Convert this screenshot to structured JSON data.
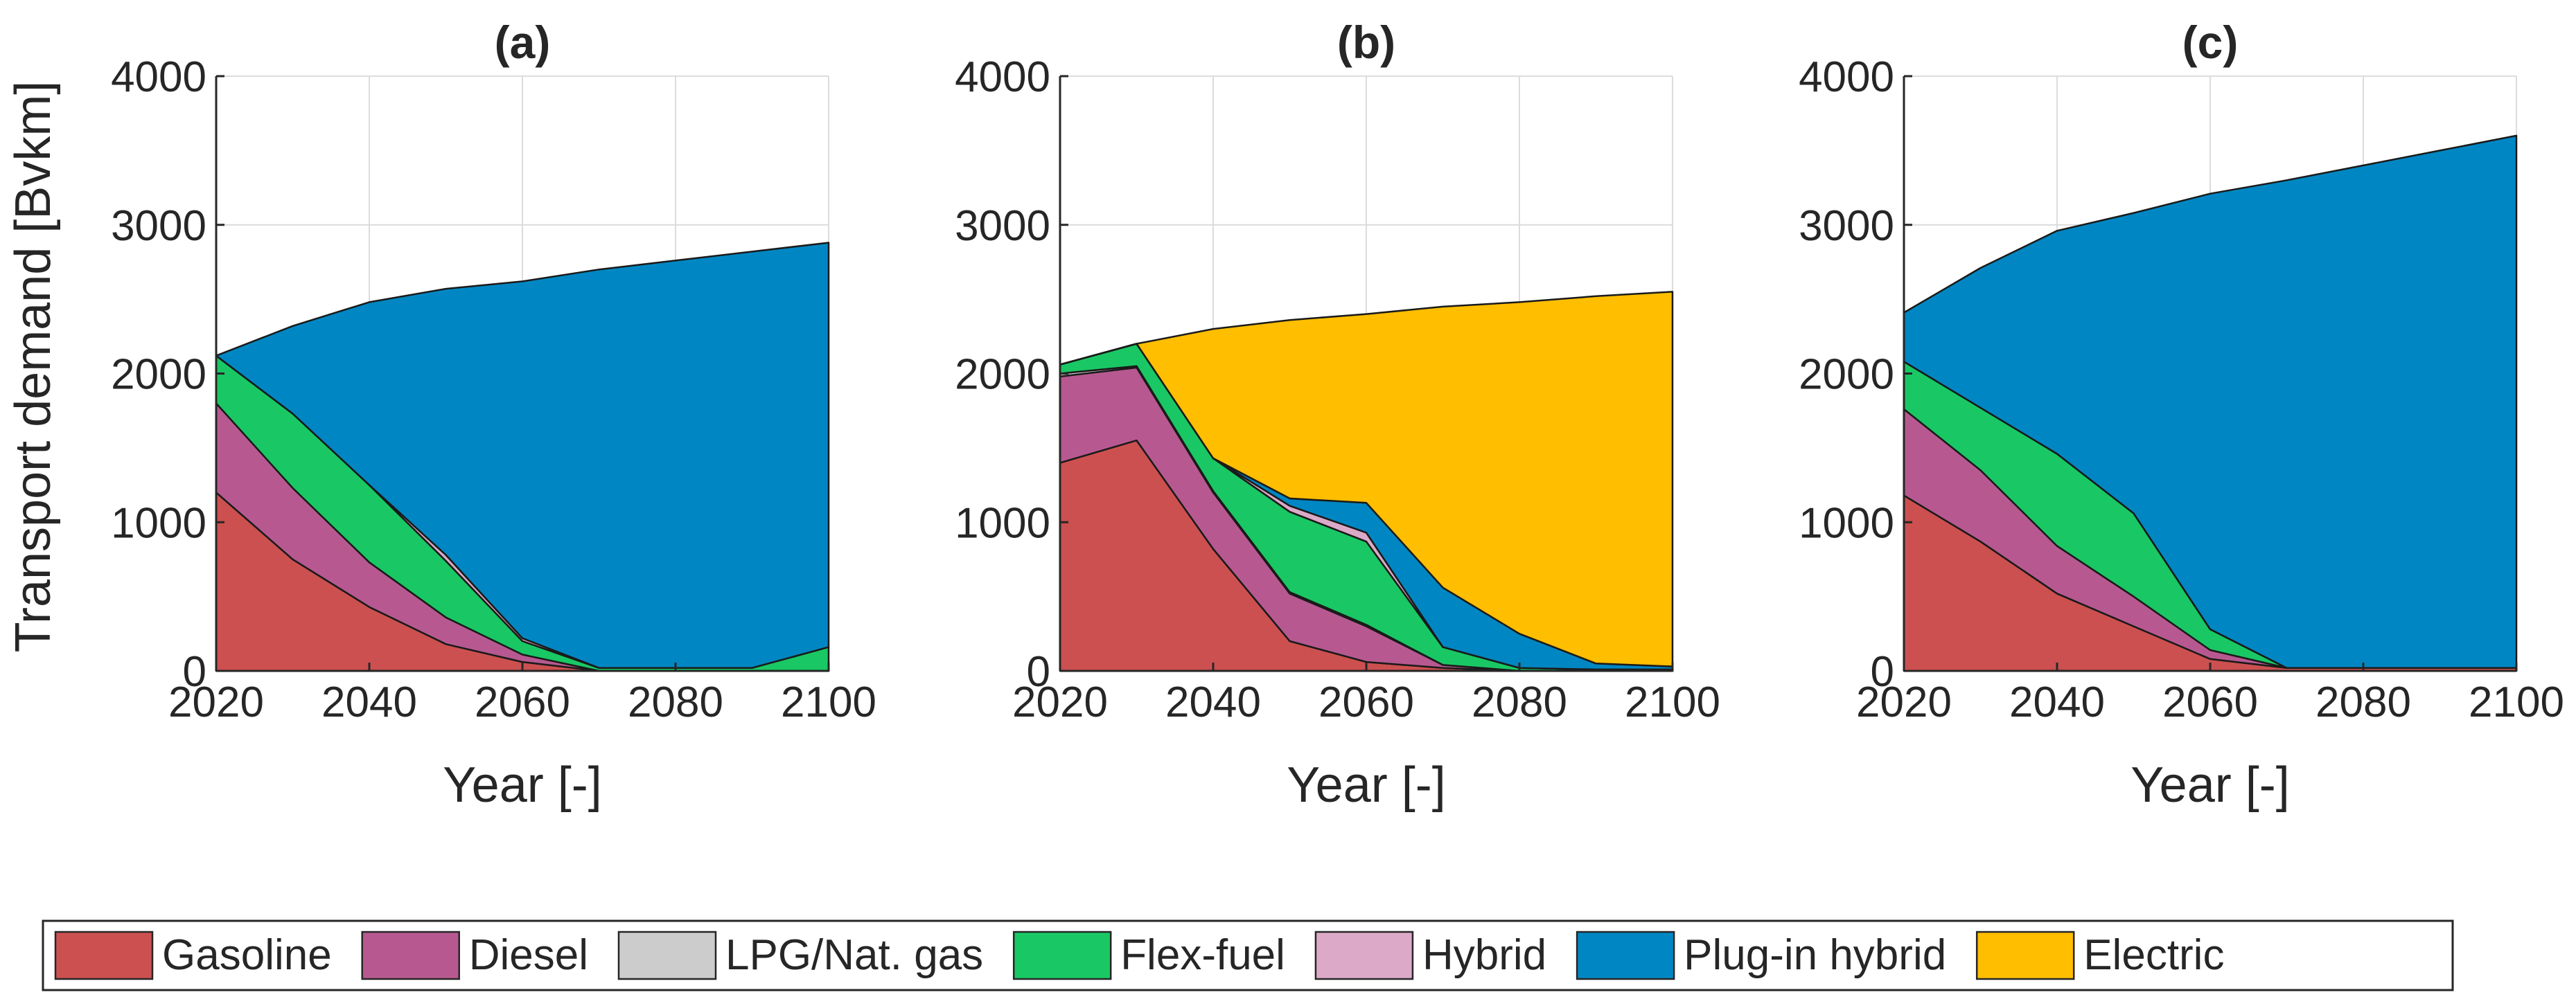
{
  "chart_data": [
    {
      "type": "area",
      "title": "(a)",
      "xlabel": "Year [-]",
      "ylabel": "Transport demand [Bvkm]",
      "xlim": [
        2020,
        2100
      ],
      "ylim": [
        0,
        4000
      ],
      "xticks": [
        2020,
        2040,
        2060,
        2080,
        2100
      ],
      "yticks": [
        0,
        1000,
        2000,
        3000,
        4000
      ],
      "grid": true,
      "x": [
        2020,
        2030,
        2040,
        2050,
        2060,
        2070,
        2080,
        2090,
        2100
      ],
      "series": [
        {
          "name": "Gasoline",
          "values": [
            1200,
            750,
            430,
            180,
            60,
            0,
            0,
            0,
            0
          ]
        },
        {
          "name": "Diesel",
          "values": [
            600,
            480,
            300,
            180,
            50,
            0,
            0,
            0,
            0
          ]
        },
        {
          "name": "LPG/Nat. gas",
          "values": [
            0,
            0,
            0,
            0,
            0,
            0,
            0,
            0,
            0
          ]
        },
        {
          "name": "Flex-fuel",
          "values": [
            320,
            500,
            520,
            380,
            90,
            20,
            20,
            20,
            160
          ]
        },
        {
          "name": "Hybrid",
          "values": [
            0,
            0,
            0,
            40,
            20,
            0,
            0,
            0,
            0
          ]
        },
        {
          "name": "Plug-in hybrid",
          "values": [
            0,
            590,
            1230,
            1790,
            2400,
            2680,
            2740,
            2800,
            2720
          ]
        },
        {
          "name": "Electric",
          "values": [
            0,
            0,
            0,
            0,
            0,
            0,
            0,
            0,
            0
          ]
        }
      ]
    },
    {
      "type": "area",
      "title": "(b)",
      "xlabel": "Year [-]",
      "ylabel": "",
      "xlim": [
        2020,
        2100
      ],
      "ylim": [
        0,
        4000
      ],
      "xticks": [
        2020,
        2040,
        2060,
        2080,
        2100
      ],
      "yticks": [
        0,
        1000,
        2000,
        3000,
        4000
      ],
      "grid": true,
      "x": [
        2020,
        2030,
        2040,
        2050,
        2060,
        2070,
        2080,
        2090,
        2100
      ],
      "series": [
        {
          "name": "Gasoline",
          "values": [
            1400,
            1550,
            820,
            200,
            60,
            20,
            0,
            0,
            0
          ]
        },
        {
          "name": "Diesel",
          "values": [
            580,
            490,
            380,
            320,
            240,
            20,
            0,
            0,
            0
          ]
        },
        {
          "name": "LPG/Nat. gas",
          "values": [
            20,
            10,
            10,
            10,
            10,
            0,
            0,
            0,
            0
          ]
        },
        {
          "name": "Flex-fuel",
          "values": [
            60,
            150,
            220,
            540,
            560,
            120,
            20,
            10,
            10
          ]
        },
        {
          "name": "Hybrid",
          "values": [
            0,
            0,
            0,
            40,
            60,
            0,
            0,
            0,
            0
          ]
        },
        {
          "name": "Plug-in hybrid",
          "values": [
            0,
            0,
            0,
            50,
            200,
            400,
            230,
            40,
            20
          ]
        },
        {
          "name": "Electric",
          "values": [
            0,
            0,
            870,
            1200,
            1270,
            1890,
            2230,
            2470,
            2520
          ]
        }
      ]
    },
    {
      "type": "area",
      "title": "(c)",
      "xlabel": "Year [-]",
      "ylabel": "",
      "xlim": [
        2020,
        2100
      ],
      "ylim": [
        0,
        4000
      ],
      "xticks": [
        2020,
        2040,
        2060,
        2080,
        2100
      ],
      "yticks": [
        0,
        1000,
        2000,
        3000,
        4000
      ],
      "grid": true,
      "x": [
        2020,
        2030,
        2040,
        2050,
        2060,
        2070,
        2080,
        2090,
        2100
      ],
      "series": [
        {
          "name": "Gasoline",
          "values": [
            1180,
            870,
            520,
            300,
            80,
            20,
            20,
            20,
            20
          ]
        },
        {
          "name": "Diesel",
          "values": [
            580,
            480,
            320,
            200,
            60,
            0,
            0,
            0,
            0
          ]
        },
        {
          "name": "LPG/Nat. gas",
          "values": [
            0,
            0,
            0,
            0,
            0,
            0,
            0,
            0,
            0
          ]
        },
        {
          "name": "Flex-fuel",
          "values": [
            320,
            420,
            620,
            560,
            140,
            0,
            0,
            0,
            0
          ]
        },
        {
          "name": "Hybrid",
          "values": [
            0,
            0,
            0,
            0,
            0,
            0,
            0,
            0,
            0
          ]
        },
        {
          "name": "Plug-in hybrid",
          "values": [
            330,
            940,
            1500,
            2020,
            2930,
            3280,
            3380,
            3480,
            3580
          ]
        },
        {
          "name": "Electric",
          "values": [
            0,
            0,
            0,
            0,
            0,
            0,
            0,
            0,
            0
          ]
        }
      ]
    }
  ],
  "legend": {
    "location": "bottom-center",
    "items": [
      {
        "label": "Gasoline",
        "color": "#cc5050"
      },
      {
        "label": "Diesel",
        "color": "#b75990"
      },
      {
        "label": "LPG/Nat. gas",
        "color": "#cccccc"
      },
      {
        "label": "Flex-fuel",
        "color": "#19c864"
      },
      {
        "label": "Hybrid",
        "color": "#dcaac8"
      },
      {
        "label": "Plug-in hybrid",
        "color": "#0087c3"
      },
      {
        "label": "Electric",
        "color": "#ffbe00"
      }
    ]
  }
}
